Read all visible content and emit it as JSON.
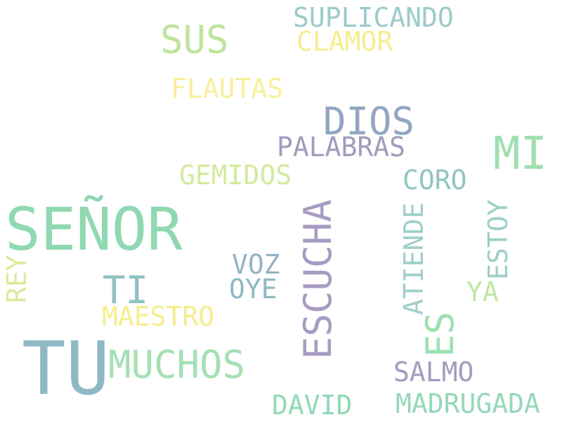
{
  "words": [
    {
      "text": "SUPLICANDO",
      "color": "#9ccbc8",
      "rotated": false
    },
    {
      "text": "SUS",
      "color": "#bfe49d",
      "rotated": false
    },
    {
      "text": "CLAMOR",
      "color": "#f4ef8f",
      "rotated": false
    },
    {
      "text": "FLAUTAS",
      "color": "#f7ef9a",
      "rotated": false
    },
    {
      "text": "DIOS",
      "color": "#93a6bf",
      "rotated": false
    },
    {
      "text": "MI",
      "color": "#a1dfb0",
      "rotated": false
    },
    {
      "text": "PALABRAS",
      "color": "#a09cbc",
      "rotated": false
    },
    {
      "text": "GEMIDOS",
      "color": "#d3ea9d",
      "rotated": false
    },
    {
      "text": "CORO",
      "color": "#93c5c0",
      "rotated": false
    },
    {
      "text": "SEÑOR",
      "color": "#90d8b2",
      "rotated": false
    },
    {
      "text": "ESCUCHA",
      "color": "#a79bc2",
      "rotated": true
    },
    {
      "text": "ATIENDE",
      "color": "#9fcfcb",
      "rotated": true
    },
    {
      "text": "ESTOY",
      "color": "#9ecfc9",
      "rotated": true
    },
    {
      "text": "REY",
      "color": "#d7ec9c",
      "rotated": true
    },
    {
      "text": "VOZ",
      "color": "#95b3c3",
      "rotated": false
    },
    {
      "text": "OYE",
      "color": "#8fb9c1",
      "rotated": false
    },
    {
      "text": "TI",
      "color": "#90c1c1",
      "rotated": false
    },
    {
      "text": "YA",
      "color": "#bde7a3",
      "rotated": false
    },
    {
      "text": "MAESTRO",
      "color": "#f6ee8e",
      "rotated": false
    },
    {
      "text": "ES",
      "color": "#9de1b3",
      "rotated": true
    },
    {
      "text": "TU",
      "color": "#8eb8c4",
      "rotated": false
    },
    {
      "text": "MUCHOS",
      "color": "#a4e0b4",
      "rotated": false
    },
    {
      "text": "SALMO",
      "color": "#a29cc0",
      "rotated": false
    },
    {
      "text": "DAVID",
      "color": "#90d9b7",
      "rotated": false
    },
    {
      "text": "MADRUGADA",
      "color": "#95d8ba",
      "rotated": false
    }
  ]
}
